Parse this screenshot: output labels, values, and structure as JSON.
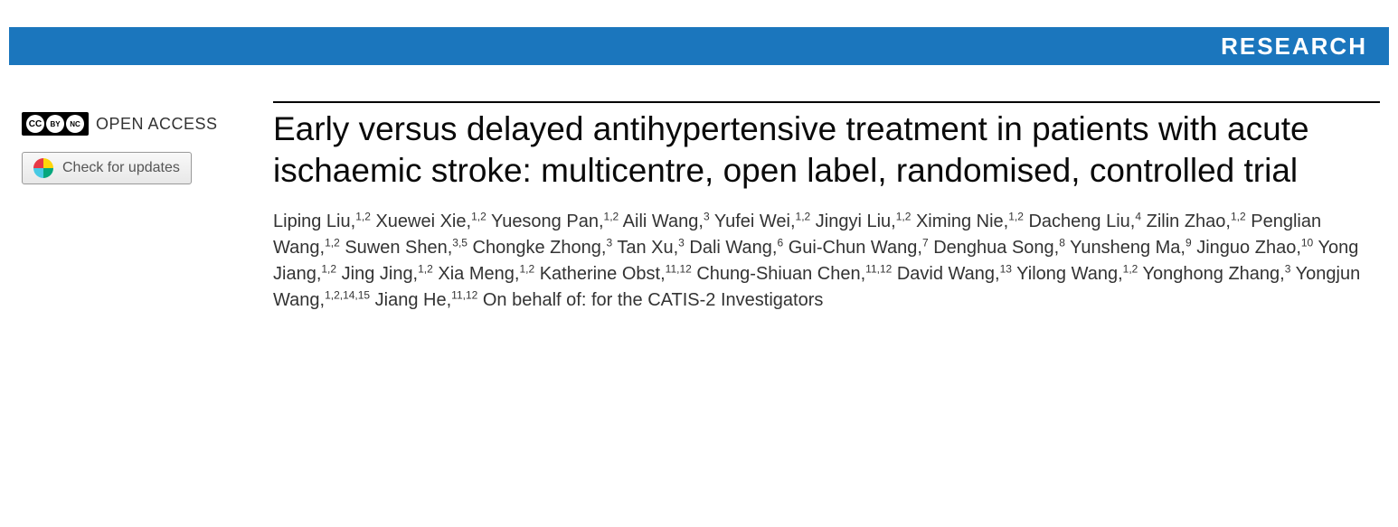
{
  "banner": {
    "label": "RESEARCH",
    "bg_color": "#1b76bd",
    "text_color": "#ffffff"
  },
  "sidebar": {
    "open_access_label": "OPEN ACCESS",
    "cc_icons": [
      "CC",
      "BY",
      "NC"
    ],
    "check_updates_label": "Check for updates",
    "crossmark_colors": {
      "q1": "#e63946",
      "q2": "#ffd60a",
      "q3": "#48cae4",
      "q4": "#06a77d"
    }
  },
  "article": {
    "title": "Early versus delayed antihypertensive treatment in patients with acute ischaemic stroke: multicentre, open label, randomised, controlled trial",
    "title_color": "#0a0a0a",
    "authors": [
      {
        "name": "Liping Liu",
        "affil": "1,2"
      },
      {
        "name": "Xuewei Xie",
        "affil": "1,2"
      },
      {
        "name": "Yuesong Pan",
        "affil": "1,2"
      },
      {
        "name": "Aili Wang",
        "affil": "3"
      },
      {
        "name": "Yufei Wei",
        "affil": "1,2"
      },
      {
        "name": "Jingyi Liu",
        "affil": "1,2"
      },
      {
        "name": "Ximing Nie",
        "affil": "1,2"
      },
      {
        "name": "Dacheng Liu",
        "affil": "4"
      },
      {
        "name": "Zilin Zhao",
        "affil": "1,2"
      },
      {
        "name": "Penglian Wang",
        "affil": "1,2"
      },
      {
        "name": "Suwen Shen",
        "affil": "3,5"
      },
      {
        "name": "Chongke Zhong",
        "affil": "3"
      },
      {
        "name": "Tan Xu",
        "affil": "3"
      },
      {
        "name": "Dali Wang",
        "affil": "6"
      },
      {
        "name": "Gui-Chun Wang",
        "affil": "7"
      },
      {
        "name": "Denghua Song",
        "affil": "8"
      },
      {
        "name": "Yunsheng Ma",
        "affil": "9"
      },
      {
        "name": "Jinguo Zhao",
        "affil": "10"
      },
      {
        "name": "Yong Jiang",
        "affil": "1,2"
      },
      {
        "name": "Jing Jing",
        "affil": "1,2"
      },
      {
        "name": "Xia Meng",
        "affil": "1,2"
      },
      {
        "name": "Katherine Obst",
        "affil": "11,12"
      },
      {
        "name": "Chung-Shiuan Chen",
        "affil": "11,12"
      },
      {
        "name": "David Wang",
        "affil": "13"
      },
      {
        "name": "Yilong Wang",
        "affil": "1,2"
      },
      {
        "name": "Yonghong Zhang",
        "affil": "3"
      },
      {
        "name": "Yongjun Wang",
        "affil": "1,2,14,15"
      },
      {
        "name": "Jiang He",
        "affil": "11,12"
      }
    ],
    "on_behalf": "On behalf of: for the CATIS-2 Investigators",
    "author_text_color": "#333333"
  }
}
